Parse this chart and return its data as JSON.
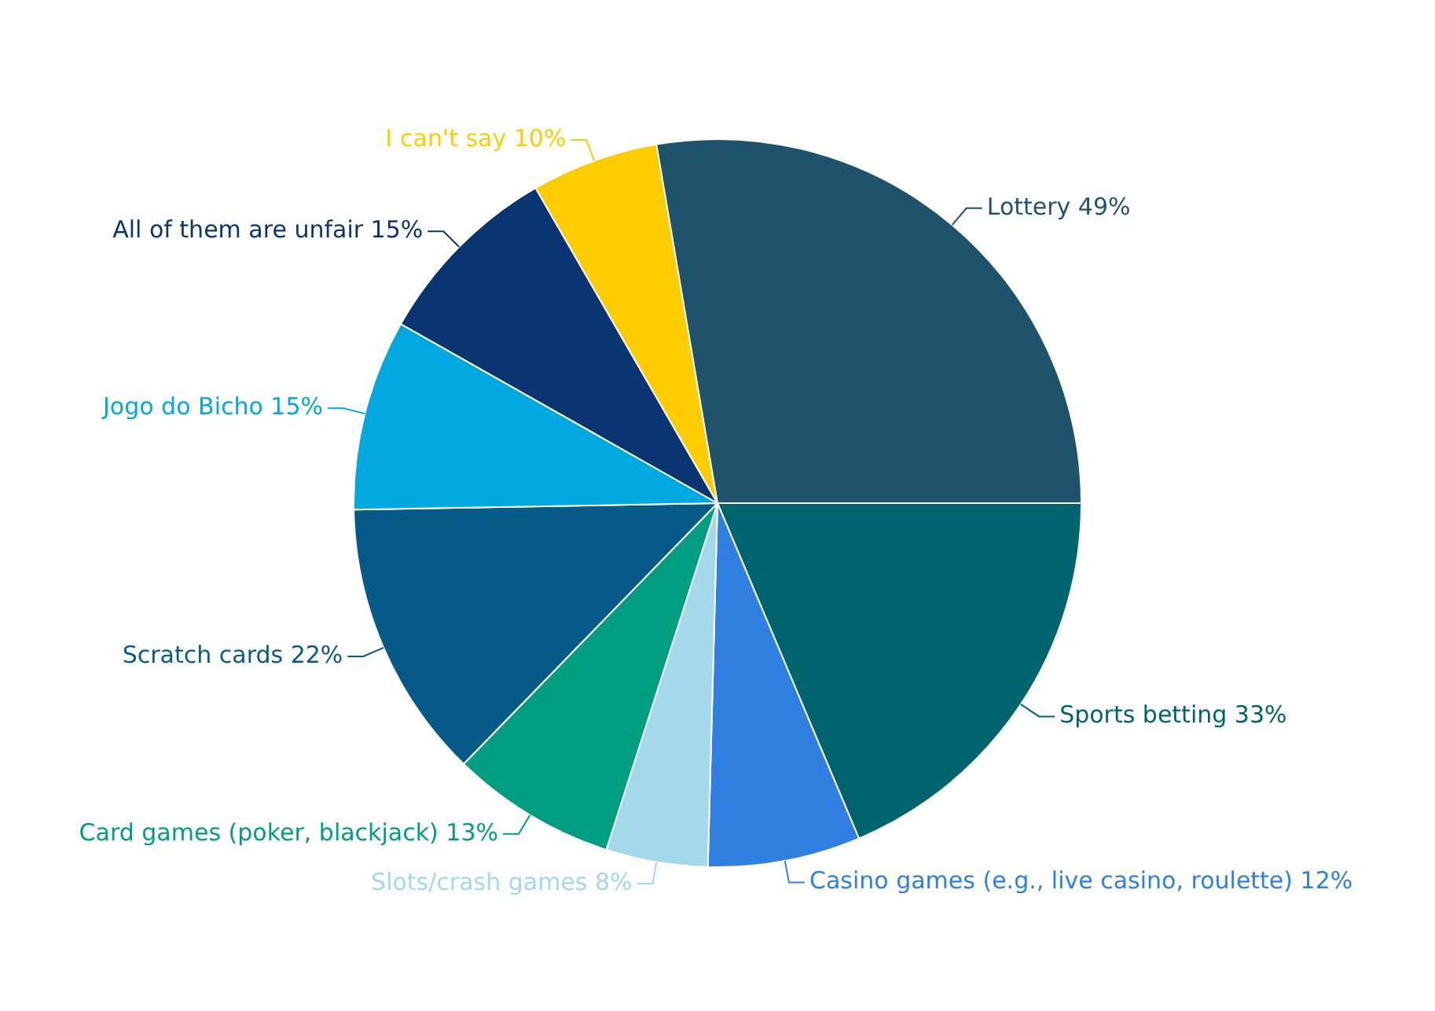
{
  "chart_data": {
    "type": "pie",
    "categories": [
      "Sports betting",
      "Casino games (e.g., live casino, roulette)",
      "Slots/crash games",
      "Card games (poker, blackjack)",
      "Scratch cards",
      "Jogo do Bicho",
      "All of them are unfair",
      "I can't say",
      "Lottery"
    ],
    "values": [
      33,
      12,
      8,
      13,
      22,
      15,
      15,
      10,
      49
    ],
    "value_labels": [
      "33%",
      "12%",
      "8%",
      "13%",
      "22%",
      "15%",
      "15%",
      "10%",
      "49%"
    ],
    "colors": [
      "#00646e",
      "#2f80e0",
      "#a3d9e8",
      "#009e80",
      "#065a87",
      "#00a8e0",
      "#0a3570",
      "#ffcc00",
      "#1f526b"
    ]
  }
}
